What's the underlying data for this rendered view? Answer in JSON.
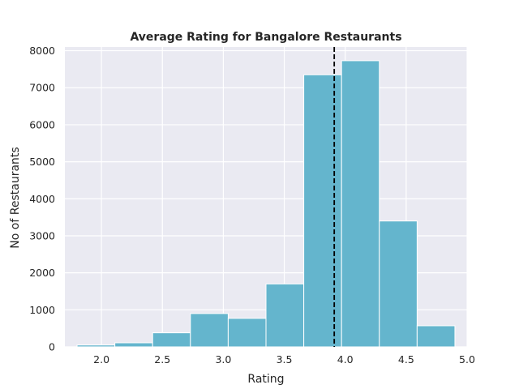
{
  "chart_data": {
    "type": "bar",
    "title": "Average Rating for Bangalore Restaurants",
    "xlabel": "Rating",
    "ylabel": "No of Restaurants",
    "xlim": [
      1.7,
      5.0
    ],
    "ylim": [
      0,
      8100
    ],
    "xticks": [
      "2.0",
      "2.5",
      "3.0",
      "3.5",
      "4.0",
      "4.5",
      "5.0"
    ],
    "yticks": [
      "0",
      "1000",
      "2000",
      "3000",
      "4000",
      "5000",
      "6000",
      "7000",
      "8000"
    ],
    "bins": [
      {
        "start": 1.8,
        "end": 2.11,
        "value": 50
      },
      {
        "start": 2.11,
        "end": 2.42,
        "value": 110
      },
      {
        "start": 2.42,
        "end": 2.73,
        "value": 380
      },
      {
        "start": 2.73,
        "end": 3.04,
        "value": 900
      },
      {
        "start": 3.04,
        "end": 3.35,
        "value": 770
      },
      {
        "start": 3.35,
        "end": 3.66,
        "value": 1700
      },
      {
        "start": 3.66,
        "end": 3.97,
        "value": 7350
      },
      {
        "start": 3.97,
        "end": 4.28,
        "value": 7730
      },
      {
        "start": 4.28,
        "end": 4.59,
        "value": 3400
      },
      {
        "start": 4.59,
        "end": 4.9,
        "value": 570
      }
    ],
    "mean_line": 3.91,
    "bar_color": "#64b5cd",
    "background_color": "#eaeaf2",
    "grid": true
  }
}
